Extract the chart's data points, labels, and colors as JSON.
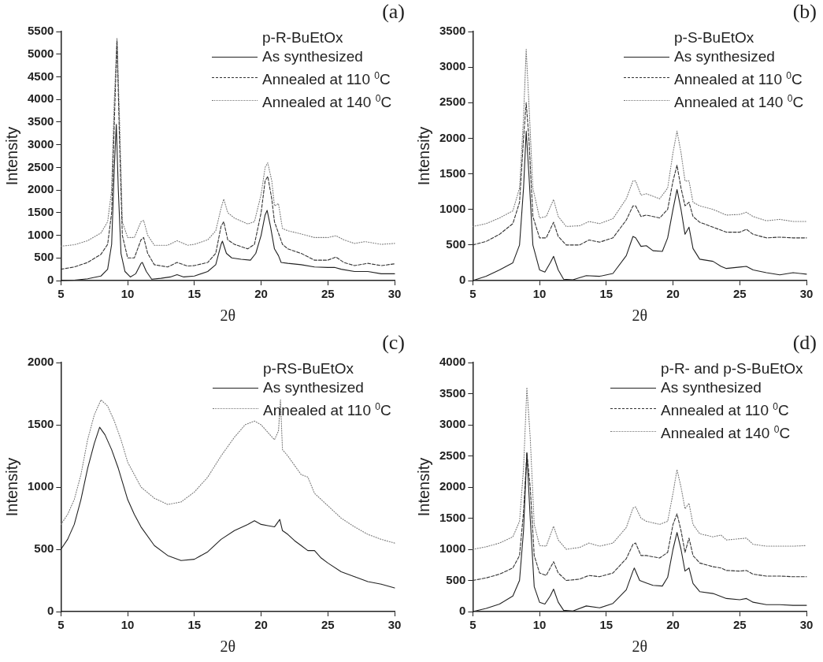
{
  "chart_data": [
    {
      "type": "line",
      "xlabel": "2θ",
      "ylabel": "Intensity",
      "legend_title": "p-R-BuEtOx",
      "legend": "top right",
      "grid": false,
      "annotations": [
        "(a)"
      ],
      "xlim": [
        5,
        30
      ],
      "xticks": [
        5,
        10,
        15,
        20,
        25,
        30
      ],
      "ylim": [
        0,
        5500
      ],
      "yticks": [
        0,
        500,
        1000,
        1500,
        2000,
        2500,
        3000,
        3500,
        4000,
        4500,
        5000,
        5500
      ],
      "series": [
        {
          "name": "As synthesized",
          "color": "#222222",
          "line_style": "solid",
          "x": [
            5,
            6,
            7,
            8,
            8.5,
            8.8,
            9,
            9.15,
            9.3,
            9.5,
            9.8,
            10.2,
            10.6,
            11,
            11.1,
            11.4,
            11.8,
            12.5,
            13.2,
            13.7,
            14.2,
            15,
            16,
            16.6,
            17,
            17.1,
            17.4,
            17.8,
            18.5,
            19.2,
            19.6,
            20,
            20.3,
            20.45,
            20.7,
            21,
            21.3,
            21.5,
            22,
            23,
            24,
            25,
            25.5,
            26,
            27,
            28,
            29,
            30
          ],
          "values": [
            0,
            10,
            40,
            100,
            250,
            800,
            2500,
            3450,
            2000,
            600,
            200,
            80,
            150,
            380,
            400,
            200,
            30,
            50,
            80,
            130,
            80,
            100,
            200,
            350,
            800,
            870,
            600,
            500,
            470,
            450,
            600,
            1000,
            1450,
            1550,
            1200,
            700,
            550,
            400,
            380,
            350,
            300,
            290,
            290,
            250,
            200,
            200,
            150,
            150
          ]
        },
        {
          "name": "Annealed at 110 $^{0}$C",
          "color": "#333333",
          "line_style": "dashed",
          "x": [
            5,
            6,
            7,
            8,
            8.5,
            8.8,
            9,
            9.2,
            9.4,
            9.6,
            10,
            10.5,
            11,
            11.2,
            11.5,
            12,
            13,
            13.7,
            14.5,
            15,
            16,
            16.6,
            17,
            17.2,
            17.5,
            18,
            19,
            19.5,
            20,
            20.3,
            20.5,
            20.8,
            21,
            21.3,
            21.6,
            22,
            23,
            24,
            25,
            25.6,
            26.2,
            27,
            28,
            29,
            30
          ],
          "values": [
            250,
            300,
            400,
            580,
            800,
            1500,
            3500,
            5300,
            3000,
            1000,
            500,
            500,
            900,
            950,
            600,
            350,
            300,
            400,
            320,
            330,
            400,
            600,
            1200,
            1300,
            900,
            800,
            700,
            800,
            1500,
            2200,
            2300,
            1800,
            1300,
            1050,
            800,
            700,
            600,
            450,
            450,
            520,
            400,
            330,
            380,
            330,
            370
          ]
        },
        {
          "name": "Annealed at 140 $^{0}$C",
          "color": "#777777",
          "line_style": "dotted",
          "x": [
            5,
            6,
            7,
            8,
            8.5,
            8.8,
            9,
            9.2,
            9.4,
            9.6,
            10,
            10.5,
            11,
            11.2,
            11.5,
            12,
            13,
            13.7,
            14.5,
            15,
            16,
            16.6,
            17,
            17.2,
            17.5,
            18,
            19,
            19.5,
            20,
            20.3,
            20.5,
            20.8,
            21,
            21.3,
            21.6,
            22,
            23,
            24,
            25,
            25.6,
            26.2,
            27,
            27.8,
            29,
            30
          ],
          "values": [
            760,
            790,
            880,
            1050,
            1300,
            2000,
            4000,
            5350,
            3500,
            1300,
            950,
            950,
            1300,
            1330,
            1000,
            780,
            780,
            880,
            780,
            800,
            900,
            1100,
            1600,
            1800,
            1500,
            1380,
            1250,
            1300,
            1900,
            2500,
            2600,
            2200,
            1650,
            1700,
            1150,
            1100,
            1030,
            950,
            950,
            990,
            900,
            820,
            860,
            800,
            820
          ]
        }
      ]
    },
    {
      "type": "line",
      "xlabel": "2θ",
      "ylabel": "Intensity",
      "legend_title": "p-S-BuEtOx",
      "legend": "top right",
      "grid": false,
      "annotations": [
        "(b)"
      ],
      "xlim": [
        5,
        30
      ],
      "xticks": [
        5,
        10,
        15,
        20,
        25,
        30
      ],
      "ylim": [
        0,
        3500
      ],
      "yticks": [
        0,
        500,
        1000,
        1500,
        2000,
        2500,
        3000,
        3500
      ],
      "series": [
        {
          "name": "As synthesized",
          "color": "#222222",
          "line_style": "solid",
          "x": [
            5,
            6,
            7,
            8,
            8.5,
            8.8,
            9,
            9.2,
            9.5,
            10,
            10.4,
            10.8,
            11.05,
            11.4,
            11.8,
            12.5,
            13.5,
            14.5,
            15.5,
            16.5,
            17,
            17.2,
            17.6,
            18,
            18.5,
            19.2,
            19.6,
            20,
            20.3,
            20.6,
            20.9,
            21.2,
            21.5,
            22,
            23,
            23.6,
            24,
            25,
            25.5,
            26,
            27,
            28,
            29,
            30
          ],
          "values": [
            0,
            60,
            150,
            250,
            500,
            1300,
            2100,
            1500,
            500,
            150,
            120,
            250,
            340,
            150,
            20,
            10,
            70,
            60,
            100,
            350,
            620,
            600,
            480,
            490,
            420,
            410,
            600,
            1000,
            1280,
            1000,
            650,
            750,
            450,
            300,
            270,
            200,
            170,
            190,
            200,
            150,
            110,
            80,
            110,
            90
          ]
        },
        {
          "name": "Annealed at 110 $^{0}$C",
          "color": "#333333",
          "line_style": "dashed",
          "x": [
            5,
            6,
            7,
            8,
            8.5,
            8.8,
            9,
            9.2,
            9.5,
            10,
            10.5,
            11.05,
            11.4,
            12,
            13,
            13.7,
            14.5,
            15.5,
            16.5,
            17,
            17.2,
            17.6,
            18,
            19,
            19.6,
            20,
            20.3,
            20.6,
            20.9,
            21.2,
            21.5,
            22,
            23,
            24,
            25,
            25.5,
            26,
            27,
            28,
            29,
            30
          ],
          "values": [
            500,
            550,
            650,
            800,
            1100,
            2000,
            2500,
            2000,
            900,
            600,
            600,
            820,
            620,
            500,
            500,
            570,
            540,
            600,
            850,
            1050,
            1050,
            900,
            920,
            880,
            1000,
            1400,
            1620,
            1300,
            1050,
            1100,
            900,
            820,
            750,
            680,
            680,
            720,
            650,
            600,
            610,
            600,
            600
          ]
        },
        {
          "name": "Annealed at 140 $^{0}$C",
          "color": "#777777",
          "line_style": "dotted",
          "x": [
            5,
            6,
            7,
            8,
            8.5,
            8.8,
            9,
            9.2,
            9.5,
            10,
            10.5,
            11.05,
            11.4,
            12,
            13,
            13.7,
            14.5,
            15.5,
            16.5,
            17,
            17.2,
            17.6,
            18,
            19,
            19.6,
            20,
            20.3,
            20.6,
            20.9,
            21.2,
            21.5,
            22,
            23,
            24,
            25,
            25.5,
            26,
            27,
            28,
            29,
            30
          ],
          "values": [
            760,
            800,
            880,
            980,
            1300,
            2300,
            3250,
            2500,
            1300,
            880,
            900,
            1140,
            900,
            760,
            770,
            830,
            800,
            870,
            1150,
            1400,
            1400,
            1200,
            1220,
            1150,
            1300,
            1800,
            2100,
            1800,
            1400,
            1400,
            1100,
            1050,
            1000,
            920,
            930,
            960,
            900,
            840,
            860,
            830,
            830
          ]
        }
      ]
    },
    {
      "type": "line",
      "xlabel": "2θ",
      "ylabel": "Intensity",
      "legend_title": "p-RS-BuEtOx",
      "legend": "top right",
      "grid": false,
      "annotations": [
        "(c)"
      ],
      "xlim": [
        5,
        30
      ],
      "xticks": [
        5,
        10,
        15,
        20,
        25,
        30
      ],
      "ylim": [
        0,
        2000
      ],
      "yticks": [
        0,
        500,
        1000,
        1500,
        2000
      ],
      "series": [
        {
          "name": "As synthesized",
          "color": "#222222",
          "line_style": "solid",
          "x": [
            5,
            5.5,
            6,
            6.5,
            7,
            7.5,
            7.9,
            8.3,
            8.8,
            9.3,
            10,
            10.5,
            11,
            12,
            13,
            14,
            15,
            16,
            17,
            18,
            19,
            19.5,
            20,
            20.5,
            21,
            21.4,
            21.6,
            22,
            22.5,
            23,
            23.5,
            24,
            24.5,
            25,
            26,
            27,
            28,
            29,
            30
          ],
          "values": [
            500,
            580,
            700,
            900,
            1150,
            1350,
            1480,
            1420,
            1300,
            1150,
            900,
            780,
            680,
            530,
            450,
            410,
            420,
            480,
            580,
            650,
            700,
            730,
            700,
            690,
            680,
            740,
            650,
            620,
            570,
            530,
            490,
            490,
            430,
            390,
            320,
            280,
            240,
            220,
            190
          ]
        },
        {
          "name": "Annealed at 110 $^{0}$C",
          "color": "#777777",
          "line_style": "dotted",
          "x": [
            5,
            5.5,
            6,
            6.5,
            7,
            7.5,
            8,
            8.5,
            9,
            9.5,
            10,
            10.5,
            11,
            12,
            13,
            14,
            15,
            16,
            17,
            18,
            18.8,
            19.5,
            20,
            20.5,
            21,
            21.3,
            21.45,
            21.6,
            22,
            23,
            23.5,
            24,
            25,
            26,
            27,
            28,
            29,
            30
          ],
          "values": [
            700,
            780,
            900,
            1100,
            1380,
            1580,
            1700,
            1650,
            1530,
            1380,
            1200,
            1100,
            1000,
            910,
            860,
            880,
            960,
            1080,
            1250,
            1400,
            1500,
            1530,
            1500,
            1440,
            1380,
            1450,
            1700,
            1300,
            1250,
            1100,
            1080,
            950,
            850,
            750,
            680,
            620,
            580,
            550
          ]
        }
      ]
    },
    {
      "type": "line",
      "xlabel": "2θ",
      "ylabel": "Intensity",
      "legend_title": "p-R- and p-S-BuEtOx",
      "legend": "top right",
      "grid": false,
      "annotations": [
        "(d)"
      ],
      "xlim": [
        5,
        30
      ],
      "xticks": [
        5,
        10,
        15,
        20,
        25,
        30
      ],
      "ylim": [
        0,
        4000
      ],
      "yticks": [
        0,
        500,
        1000,
        1500,
        2000,
        2500,
        3000,
        3500,
        4000
      ],
      "series": [
        {
          "name": "As synthesized",
          "color": "#222222",
          "line_style": "solid",
          "x": [
            5,
            6,
            7,
            8,
            8.5,
            8.8,
            9.05,
            9.3,
            9.6,
            10,
            10.4,
            10.8,
            11.05,
            11.4,
            11.8,
            12.5,
            13.5,
            14.5,
            15.5,
            16.5,
            17,
            17.1,
            17.5,
            18,
            18.5,
            19.2,
            19.6,
            20,
            20.3,
            20.6,
            20.9,
            21.2,
            21.5,
            22,
            23,
            24,
            25,
            25.5,
            26,
            27,
            28,
            29,
            30
          ],
          "values": [
            0,
            50,
            120,
            250,
            500,
            1300,
            2550,
            1500,
            400,
            150,
            120,
            250,
            360,
            150,
            20,
            10,
            90,
            60,
            130,
            350,
            650,
            700,
            500,
            460,
            420,
            410,
            550,
            1000,
            1270,
            1000,
            650,
            700,
            450,
            320,
            290,
            210,
            190,
            210,
            150,
            110,
            110,
            100,
            100
          ]
        },
        {
          "name": "Annealed at 110 $^{0}$C",
          "color": "#333333",
          "line_style": "dashed",
          "x": [
            5,
            6,
            7,
            8,
            8.5,
            8.8,
            9.05,
            9.3,
            9.6,
            10,
            10.5,
            11.05,
            11.4,
            12,
            13,
            13.7,
            14.5,
            15.5,
            16.5,
            17,
            17.2,
            17.6,
            18,
            19,
            19.6,
            20,
            20.3,
            20.6,
            20.9,
            21.2,
            21.5,
            22,
            23,
            23.6,
            24,
            25,
            25.5,
            26,
            27,
            28,
            29,
            30
          ],
          "values": [
            500,
            540,
            600,
            700,
            900,
            1600,
            2550,
            2000,
            900,
            620,
            580,
            800,
            620,
            500,
            520,
            580,
            560,
            620,
            850,
            1080,
            1100,
            900,
            900,
            860,
            950,
            1400,
            1570,
            1300,
            950,
            1180,
            900,
            780,
            720,
            700,
            660,
            650,
            660,
            600,
            570,
            570,
            560,
            560
          ]
        },
        {
          "name": "Annealed at 140 $^{0}$C",
          "color": "#777777",
          "line_style": "dotted",
          "x": [
            5,
            6,
            7,
            8,
            8.5,
            8.8,
            9.05,
            9.3,
            9.6,
            10,
            10.5,
            11.05,
            11.4,
            12,
            13,
            13.7,
            14.5,
            15.5,
            16.5,
            17,
            17.2,
            17.6,
            18,
            19,
            19.6,
            20,
            20.3,
            20.6,
            20.9,
            21.2,
            21.5,
            22,
            23,
            23.6,
            24,
            25,
            25.5,
            26,
            27,
            28,
            29,
            30
          ],
          "values": [
            1000,
            1040,
            1100,
            1200,
            1450,
            2300,
            3600,
            2800,
            1400,
            1060,
            1050,
            1370,
            1150,
            1000,
            1030,
            1100,
            1050,
            1100,
            1350,
            1660,
            1680,
            1500,
            1450,
            1400,
            1450,
            1900,
            2280,
            2000,
            1650,
            1740,
            1400,
            1250,
            1200,
            1230,
            1150,
            1170,
            1180,
            1080,
            1050,
            1050,
            1050,
            1060
          ]
        }
      ]
    }
  ]
}
